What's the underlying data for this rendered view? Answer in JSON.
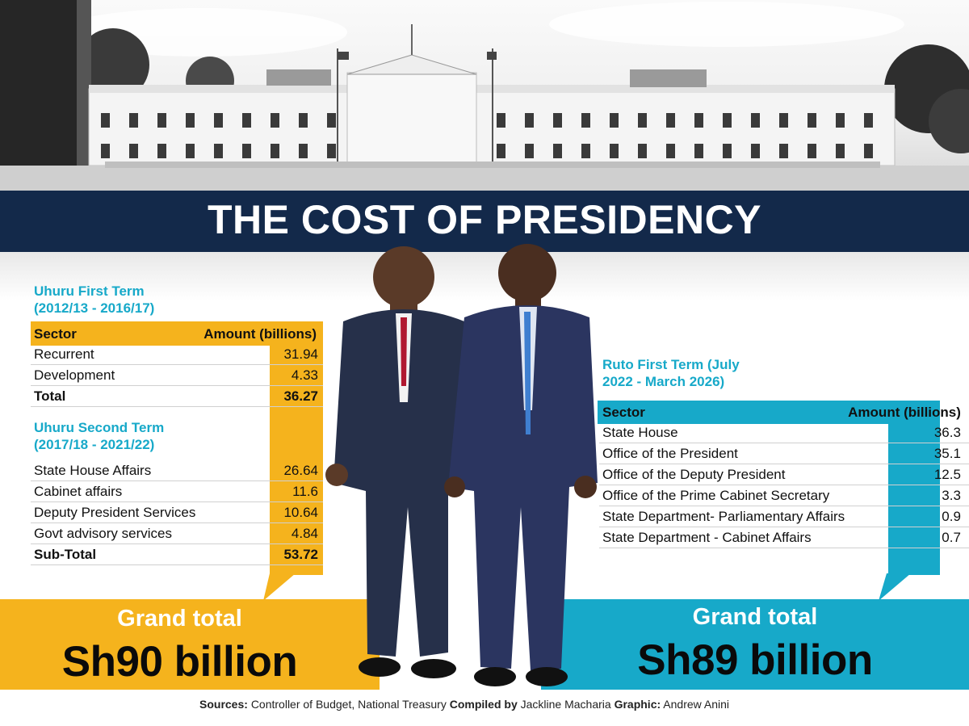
{
  "title": "THE COST OF PRESIDENCY",
  "colors": {
    "navy": "#13294a",
    "gold": "#f5b31d",
    "teal": "#17a9c9"
  },
  "uhuru": {
    "first_term_title": [
      "Uhuru First Term",
      "(2012/13 - 2016/17)"
    ],
    "second_term_title": [
      "Uhuru Second Term",
      "(2017/18 - 2021/22)"
    ],
    "header": {
      "sector": "Sector",
      "amount": "Amount (billions)"
    },
    "first_rows": [
      {
        "sector": "Recurrent",
        "amount": "31.94"
      },
      {
        "sector": "Development",
        "amount": "4.33"
      }
    ],
    "first_total": {
      "sector": "Total",
      "amount": "36.27"
    },
    "second_rows": [
      {
        "sector": "State House Affairs",
        "amount": "26.64"
      },
      {
        "sector": "Cabinet affairs",
        "amount": "11.6"
      },
      {
        "sector": "Deputy President Services",
        "amount": "10.64"
      },
      {
        "sector": "Govt advisory services",
        "amount": "4.84"
      }
    ],
    "second_total": {
      "sector": "Sub-Total",
      "amount": "53.72"
    },
    "grand_total_label": "Grand total",
    "grand_total_value": "Sh90 billion"
  },
  "ruto": {
    "term_title": [
      "Ruto First Term (July",
      "2022 - March 2026)"
    ],
    "header": {
      "sector": "Sector",
      "amount": "Amount (billions)"
    },
    "rows": [
      {
        "sector": "State House",
        "amount": "36.3"
      },
      {
        "sector": "Office of the President",
        "amount": "35.1"
      },
      {
        "sector": "Office of the Deputy President",
        "amount": "12.5"
      },
      {
        "sector": "Office of the Prime Cabinet Secretary",
        "amount": "3.3"
      },
      {
        "sector": "State Department- Parliamentary Affairs",
        "amount": "0.9"
      },
      {
        "sector": "State Department - Cabinet Affairs",
        "amount": "0.7"
      }
    ],
    "grand_total_label": "Grand total",
    "grand_total_value": "Sh89 billion"
  },
  "footer": {
    "sources_label": "Sources:",
    "sources_value": "Controller of Budget, National Treasury",
    "compiled_label": "Compiled by",
    "compiled_value": "Jackline Macharia",
    "graphic_label": "Graphic:",
    "graphic_value": "Andrew Anini"
  },
  "chart_data": [
    {
      "type": "table",
      "title": "Uhuru First Term (2012/13 - 2016/17)",
      "columns": [
        "Sector",
        "Amount (billions)"
      ],
      "rows": [
        [
          "Recurrent",
          31.94
        ],
        [
          "Development",
          4.33
        ],
        [
          "Total",
          36.27
        ]
      ]
    },
    {
      "type": "table",
      "title": "Uhuru Second Term (2017/18 - 2021/22)",
      "columns": [
        "Sector",
        "Amount (billions)"
      ],
      "rows": [
        [
          "State House Affairs",
          26.64
        ],
        [
          "Cabinet affairs",
          11.6
        ],
        [
          "Deputy President Services",
          10.64
        ],
        [
          "Govt advisory services",
          4.84
        ],
        [
          "Sub-Total",
          53.72
        ]
      ]
    },
    {
      "type": "table",
      "title": "Ruto First Term (July 2022 - March 2026)",
      "columns": [
        "Sector",
        "Amount (billions)"
      ],
      "rows": [
        [
          "State House",
          36.3
        ],
        [
          "Office of the President",
          35.1
        ],
        [
          "Office of the Deputy President",
          12.5
        ],
        [
          "Office of the Prime Cabinet Secretary",
          3.3
        ],
        [
          "State Department- Parliamentary Affairs",
          0.9
        ],
        [
          "State Department - Cabinet Affairs",
          0.7
        ]
      ]
    }
  ]
}
